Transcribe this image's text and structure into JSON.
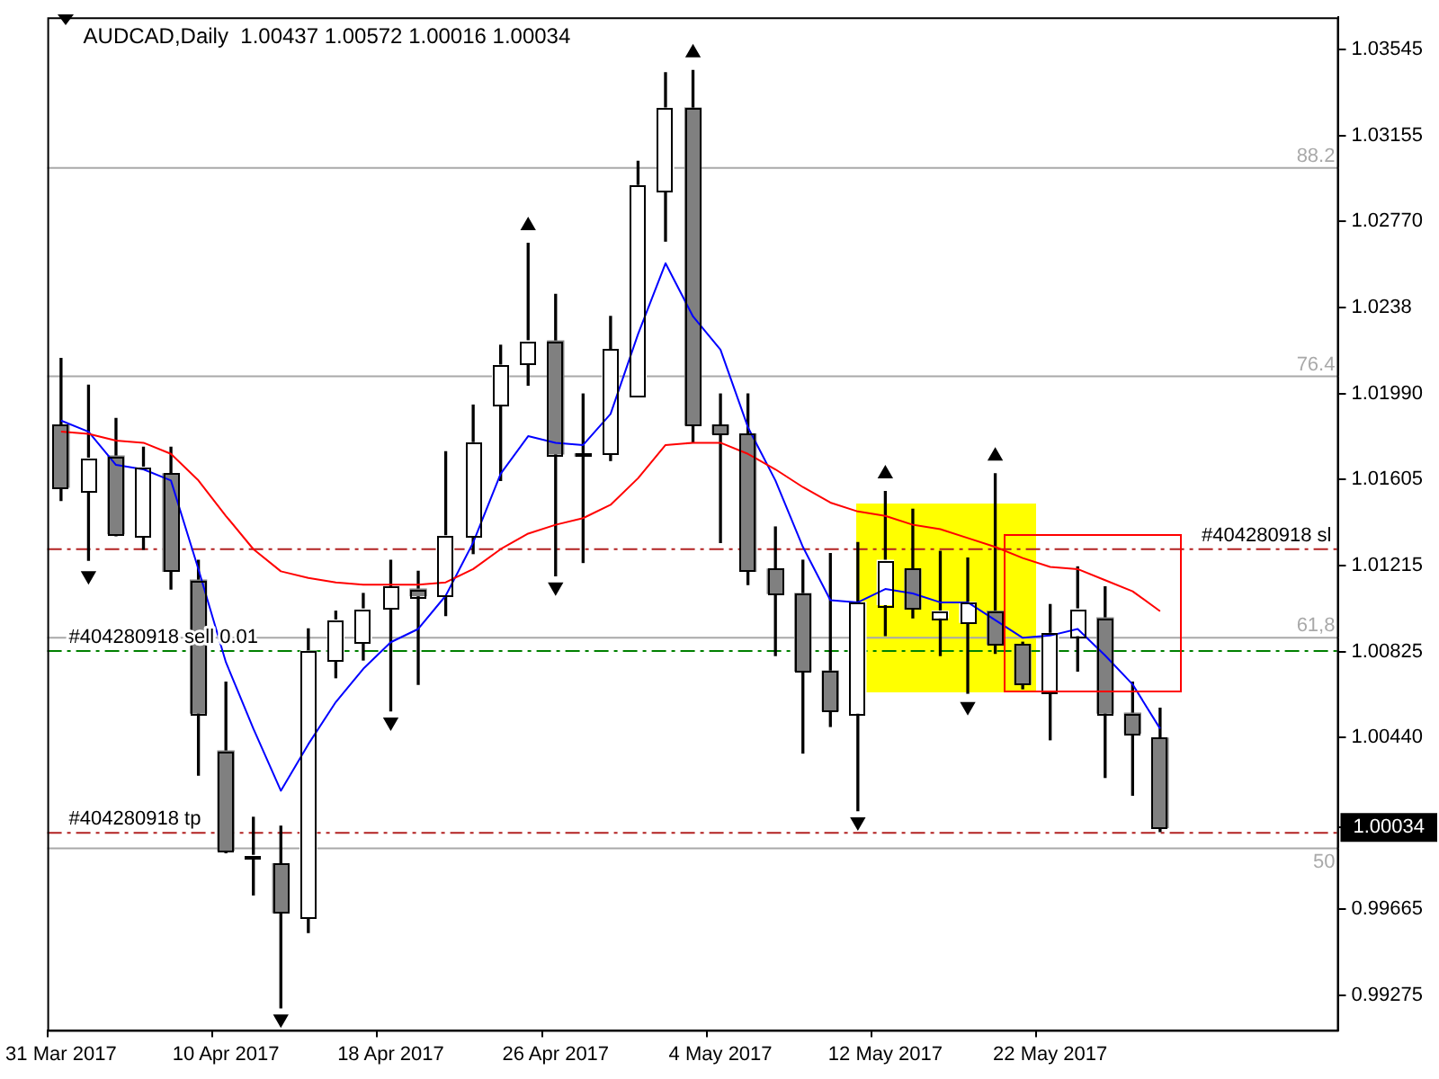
{
  "chart_data": {
    "type": "candlestick",
    "title": "AUDCAD,Daily  1.00437 1.00572 1.00016 1.00034",
    "categories": [
      "31 Mar 2017",
      null,
      null,
      null,
      null,
      null,
      "10 Apr 2017",
      null,
      null,
      null,
      null,
      null,
      "18 Apr 2017",
      null,
      null,
      null,
      null,
      null,
      "26 Apr 2017",
      null,
      null,
      null,
      null,
      null,
      "4 May 2017",
      null,
      null,
      null,
      null,
      null,
      "12 May 2017",
      null,
      null,
      null,
      null,
      null,
      "22 May 2017",
      null,
      null,
      null,
      null,
      null,
      null,
      null,
      null,
      null,
      null
    ],
    "ohlc": [
      [
        1.0185,
        1.0215,
        1.0151,
        1.0157
      ],
      [
        1.0155,
        1.0203,
        1.0124,
        1.017
      ],
      [
        1.0171,
        1.0188,
        1.0135,
        1.0136
      ],
      [
        1.0135,
        1.0175,
        1.0129,
        1.0166
      ],
      [
        1.0163,
        1.0175,
        1.0111,
        1.0119
      ],
      [
        1.0115,
        1.0124,
        1.0027,
        1.0055
      ],
      [
        1.0038,
        1.0069,
        0.9992,
        0.9993
      ],
      [
        0.999,
        1.0008,
        0.9973,
        0.999
      ],
      [
        0.9987,
        1.0004,
        0.9922,
        0.9965
      ],
      [
        0.9963,
        1.0093,
        0.9956,
        1.0083
      ],
      [
        1.0079,
        1.0101,
        1.0071,
        1.0097
      ],
      [
        1.0087,
        1.0109,
        1.0079,
        1.0102
      ],
      [
        1.0102,
        1.0124,
        1.0056,
        1.0112
      ],
      [
        1.0111,
        1.0119,
        1.0068,
        1.0108
      ],
      [
        1.0108,
        1.0173,
        1.0099,
        1.0135
      ],
      [
        1.0135,
        1.0194,
        1.0127,
        1.0177
      ],
      [
        1.0194,
        1.0221,
        1.016,
        1.0212
      ],
      [
        1.0213,
        1.0267,
        1.0203,
        1.0223
      ],
      [
        1.0223,
        1.0244,
        1.0117,
        1.0172
      ],
      [
        1.0172,
        1.0199,
        1.0123,
        1.0171
      ],
      [
        1.0172,
        1.0234,
        1.0169,
        1.0219
      ],
      [
        1.0198,
        1.0304,
        1.0198,
        1.0293
      ],
      [
        1.0291,
        1.0344,
        1.0268,
        1.0328
      ],
      [
        1.0328,
        1.0345,
        1.0177,
        1.0185
      ],
      [
        1.0185,
        1.0199,
        1.0132,
        1.0181
      ],
      [
        1.0181,
        1.0199,
        1.0113,
        1.0119
      ],
      [
        1.012,
        1.0139,
        1.0081,
        1.0109
      ],
      [
        1.0109,
        1.0124,
        1.0037,
        1.0074
      ],
      [
        1.0074,
        1.0127,
        1.0049,
        1.0056
      ],
      [
        1.0055,
        1.0132,
        1.0011,
        1.0105
      ],
      [
        1.0104,
        1.0155,
        1.009,
        1.0124
      ],
      [
        1.012,
        1.0147,
        1.0098,
        1.0102
      ],
      [
        1.0098,
        1.0128,
        1.0081,
        1.0101
      ],
      [
        1.0096,
        1.0125,
        1.0064,
        1.0105
      ],
      [
        1.0101,
        1.0163,
        1.0082,
        1.0086
      ],
      [
        1.0086,
        1.0087,
        1.0066,
        1.0068
      ],
      [
        1.0064,
        1.0104,
        1.0043,
        1.0091
      ],
      [
        1.009,
        1.0121,
        1.0074,
        1.0102
      ],
      [
        1.0098,
        1.0112,
        1.0026,
        1.0055
      ],
      [
        1.0055,
        1.0069,
        1.0018,
        1.0046
      ],
      [
        1.00437,
        1.00572,
        1.00016,
        1.00034
      ],
      null,
      null,
      null,
      null,
      null,
      null
    ],
    "colors": [
      "#808080",
      "#ffffff",
      "#808080",
      "#ffffff",
      "#808080",
      "#808080",
      "#808080",
      "#ffffff",
      "#808080",
      "#ffffff",
      "#ffffff",
      "#ffffff",
      "#ffffff",
      "#808080",
      "#ffffff",
      "#ffffff",
      "#ffffff",
      "#ffffff",
      "#808080",
      "#808080",
      "#ffffff",
      "#ffffff",
      "#ffffff",
      "#808080",
      "#808080",
      "#808080",
      "#808080",
      "#808080",
      "#808080",
      "#ffffff",
      "#ffffff",
      "#808080",
      "#ffffff",
      "#ffffff",
      "#808080",
      "#808080",
      "#ffffff",
      "#ffffff",
      "#808080",
      "#808080",
      "#808080",
      null,
      null,
      null,
      null,
      null,
      null
    ],
    "series": [
      {
        "type": "line",
        "color": "#0000ff",
        "values": [
          1.0187,
          1.0182,
          1.0167,
          1.0165,
          1.016,
          1.012,
          1.0078,
          1.0048,
          1.002,
          1.0041,
          1.006,
          1.0075,
          1.0087,
          1.0093,
          1.0108,
          1.0132,
          1.0163,
          1.018,
          1.0177,
          1.0176,
          1.019,
          1.0226,
          1.0258,
          1.0234,
          1.0219,
          1.0184,
          1.016,
          1.013,
          1.0106,
          1.0105,
          1.0111,
          1.0109,
          1.0105,
          1.0105,
          1.0097,
          1.0089,
          1.009,
          1.0093,
          1.0081,
          1.0068,
          1.0048,
          null,
          null,
          null,
          null,
          null,
          null
        ]
      },
      {
        "type": "line",
        "color": "#ff0000",
        "values": [
          1.0182,
          1.0181,
          1.0178,
          1.0177,
          1.0172,
          1.016,
          1.0144,
          1.0129,
          1.0119,
          1.0116,
          1.0114,
          1.0113,
          1.0113,
          1.0113,
          1.0114,
          1.012,
          1.0129,
          1.0136,
          1.014,
          1.0143,
          1.0149,
          1.0161,
          1.0176,
          1.0177,
          1.0177,
          1.0172,
          1.0165,
          1.0157,
          1.015,
          1.0146,
          1.0144,
          1.014,
          1.0138,
          1.0134,
          1.013,
          1.0125,
          1.0121,
          1.012,
          1.0115,
          1.011,
          1.0101,
          null,
          null,
          null,
          null,
          null,
          null
        ]
      },
      {
        "type": "scatter",
        "color": "#000000",
        "marker": "triangle",
        "values": [
          null,
          1.0117,
          null,
          null,
          null,
          null,
          null,
          null,
          0.9917,
          null,
          null,
          null,
          1.0051,
          null,
          null,
          null,
          null,
          1.0275,
          1.0112,
          null,
          null,
          null,
          null,
          1.0353,
          null,
          null,
          null,
          null,
          null,
          1.0006,
          1.0163,
          null,
          null,
          1.0058,
          1.0171,
          null,
          null,
          null,
          null,
          null,
          null,
          null,
          null,
          null,
          null,
          null,
          null
        ]
      }
    ],
    "ylim": [
      0.9912,
      1.0369
    ],
    "yticks": [
      0.99275,
      0.99665,
      1.00034,
      {
        "value": 1.0044,
        "label": "1.00440"
      },
      1.00825,
      1.01215,
      1.01605,
      {
        "value": 1.0199,
        "label": "1.01990"
      },
      1.0238,
      {
        "value": 1.0277,
        "label": "1.02770"
      },
      1.03155,
      1.03545
    ],
    "ref_lines": [
      {
        "axis": "y",
        "value": 1.0301,
        "color": "#a9a9a9",
        "line_style": "solid"
      },
      {
        "axis": "y",
        "value": 1.0207,
        "color": "#a9a9a9",
        "line_style": "solid"
      },
      {
        "axis": "y",
        "value": 1.0089,
        "color": "#a9a9a9",
        "line_style": "solid"
      },
      {
        "axis": "y",
        "value": 0.9994,
        "color": "#a9a9a9",
        "line_style": "solid"
      },
      {
        "axis": "y",
        "value": 1.0129,
        "label": "#404280918 sl",
        "color": "#b22222",
        "line_style": "dashed"
      },
      {
        "axis": "y",
        "value": 1.0083,
        "label": "#404280918 sell 0.01",
        "color": "#008000",
        "line_style": "dashed"
      },
      {
        "axis": "y",
        "value": 1.0001,
        "label": "#404280918 tp",
        "color": "#b22222",
        "line_style": "dashed"
      }
    ],
    "annotations": [
      {
        "text": "88.2",
        "y": 1.0301
      },
      {
        "text": "76.4",
        "y": 1.0207
      },
      {
        "text": "61,8",
        "y": 1.0089
      },
      {
        "text": "50",
        "y": 0.9994
      }
    ],
    "grid": false,
    "legend": false
  }
}
